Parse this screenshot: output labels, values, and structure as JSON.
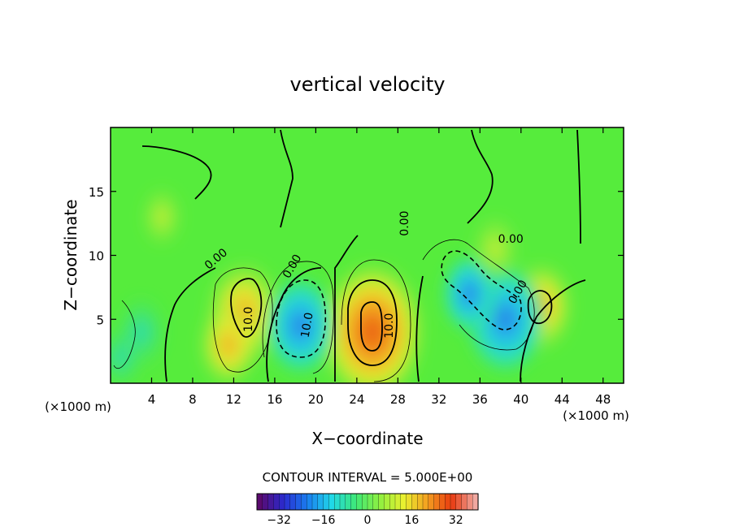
{
  "chart_data": {
    "type": "heatmap",
    "title": "vertical velocity",
    "xlabel": "X−coordinate",
    "ylabel": "Z−coordinate",
    "x_unit_left": "(×1000 m)",
    "x_unit_right": "(×1000 m)",
    "xlim": [
      0,
      50
    ],
    "ylim": [
      0,
      20
    ],
    "x_ticks": [
      4,
      8,
      12,
      16,
      20,
      24,
      28,
      32,
      36,
      40,
      44,
      48
    ],
    "y_ticks": [
      5,
      10,
      15
    ],
    "contour_interval_text": "CONTOUR INTERVAL = 5.000E+00",
    "contour_interval": 5,
    "contour_labels": [
      {
        "text": "0.00",
        "x": 10.5,
        "y": 9.5,
        "angle": -40
      },
      {
        "text": "0.00",
        "x": 18.0,
        "y": 9.0,
        "angle": -60
      },
      {
        "text": "0.00",
        "x": 29.0,
        "y": 12.5,
        "angle": -90
      },
      {
        "text": "0.00",
        "x": 39.0,
        "y": 11.0,
        "angle": 0
      },
      {
        "text": "0.00",
        "x": 40.0,
        "y": 7.0,
        "angle": -60
      },
      {
        "text": "10.0",
        "x": 13.8,
        "y": 5.0,
        "angle": -90
      },
      {
        "text": "10.0",
        "x": 19.5,
        "y": 4.5,
        "angle": -80
      },
      {
        "text": "10.0",
        "x": 27.5,
        "y": 4.5,
        "angle": -90
      }
    ],
    "cells": [
      {
        "x": 25.5,
        "z": 4.0,
        "value": 34
      },
      {
        "x": 13.0,
        "z": 5.5,
        "value": 20
      },
      {
        "x": 11.5,
        "z": 3.0,
        "value": 12
      },
      {
        "x": 42.0,
        "z": 6.0,
        "value": 14
      },
      {
        "x": 18.5,
        "z": 4.5,
        "value": -18
      },
      {
        "x": 38.5,
        "z": 5.0,
        "value": -22
      },
      {
        "x": 35.0,
        "z": 7.0,
        "value": -10
      },
      {
        "x": 3.0,
        "z": 4.0,
        "value": -8
      },
      {
        "x": 1.0,
        "z": 2.0,
        "value": -4
      },
      {
        "x": 37.5,
        "z": 10.5,
        "value": 6
      },
      {
        "x": 5.0,
        "z": 13.0,
        "value": 3
      }
    ],
    "colorbar": {
      "ticks": [
        -32,
        -16,
        0,
        16,
        32
      ],
      "range": [
        -40,
        40
      ],
      "colors": [
        "#5a0a6e",
        "#2a2ad0",
        "#1a7ff0",
        "#20d8e8",
        "#3ee878",
        "#8ef040",
        "#e8f030",
        "#f4a020",
        "#e83a10",
        "#f0a8a0"
      ]
    }
  }
}
